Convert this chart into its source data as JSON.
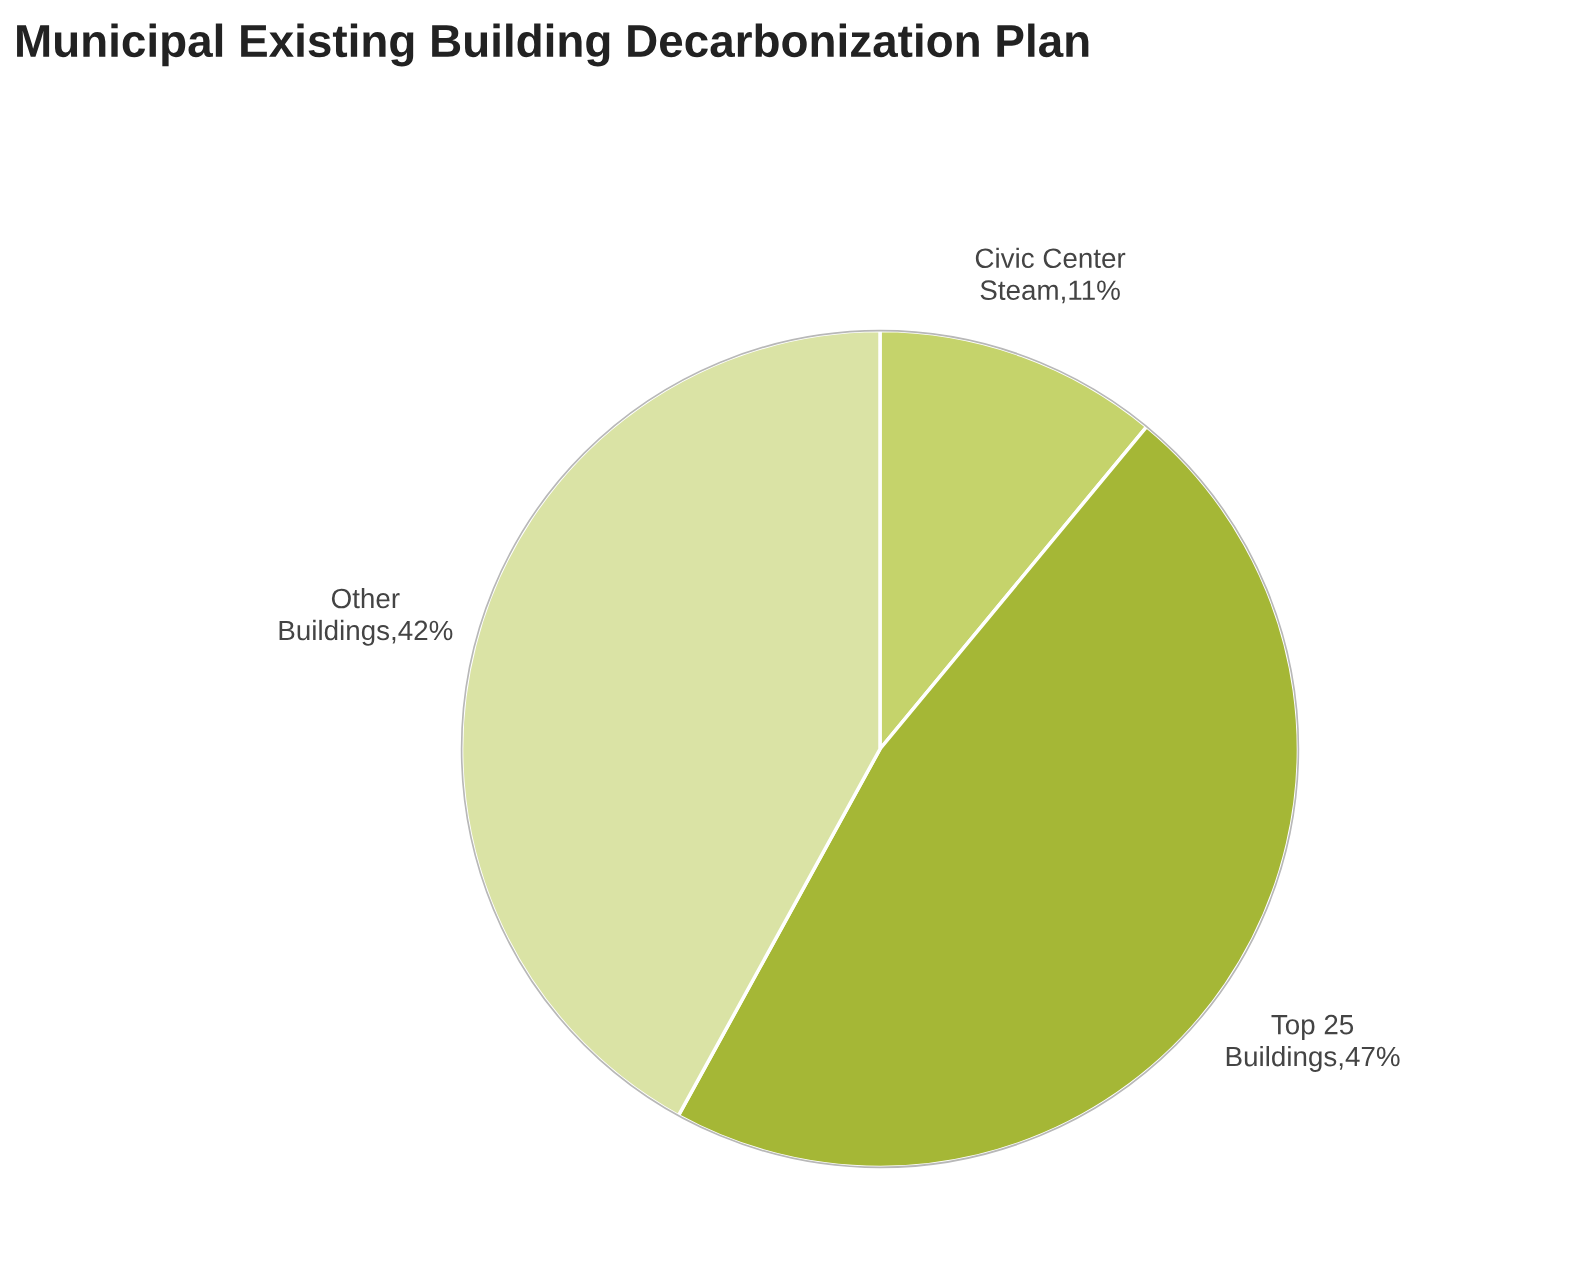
{
  "chart_data": {
    "type": "pie",
    "title": "Municipal Existing Building Decarbonization Plan",
    "categories": [
      "Civic Center Steam",
      "Top 25 Buildings",
      "Other Buildings"
    ],
    "values": [
      11,
      47,
      42
    ],
    "value_labels": [
      "11%",
      "47%",
      "42%"
    ],
    "colors": [
      "#c5d36b",
      "#a5b736",
      "#dae3a5"
    ],
    "legend": false
  }
}
